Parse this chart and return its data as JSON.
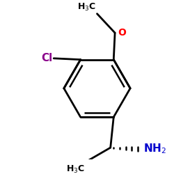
{
  "bg_color": "#ffffff",
  "bond_color": "#000000",
  "bond_lw": 2.0,
  "cl_color": "#8B008B",
  "o_color": "#FF0000",
  "nh2_color": "#0000CD",
  "figsize": [
    2.5,
    2.5
  ],
  "dpi": 100
}
